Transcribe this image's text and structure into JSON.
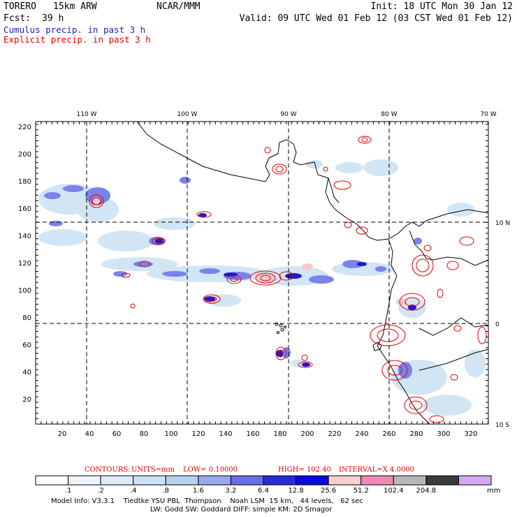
{
  "header": {
    "model": "TORERO",
    "resolution": "15km ARW",
    "org": "NCAR/MMM",
    "init": "Init: 18 UTC Mon 30 Jan 12",
    "fcst_label": "Fcst:",
    "fcst_value": "39 h",
    "valid": "Valid: 09 UTC Wed 01 Feb 12 (03 CST Wed 01 Feb 12)",
    "cumulus": "Cumulus precip. in past 3 h",
    "explicit": "Explicit precip. in past 3 h"
  },
  "colors": {
    "cumulus_title": "#2020c0",
    "explicit_title": "#e00000",
    "contour": "#e00000"
  },
  "axes": {
    "lon_labels": [
      "110 W",
      "100 W",
      "90 W",
      "80 W",
      "70 W"
    ],
    "lat_labels": [
      "10 N",
      "0",
      "10 S"
    ],
    "y_ticks": [
      "220",
      "200",
      "180",
      "160",
      "140",
      "120",
      "100",
      "80",
      "60",
      "40",
      "20"
    ],
    "x_ticks": [
      "20",
      "40",
      "60",
      "80",
      "100",
      "120",
      "140",
      "160",
      "180",
      "200",
      "220",
      "240",
      "260",
      "280",
      "300",
      "320"
    ]
  },
  "contours": {
    "prefix": "CONTOURS:",
    "units": "UNITS=mm",
    "low": "LOW= 0.10000",
    "high": "HIGH= 102.40",
    "interval": "INTERVAL=X 4.0000"
  },
  "colorbar": {
    "labels": [
      ".1",
      ".2",
      ".4",
      ".8",
      "1.6",
      "3.2",
      "6.4",
      "12.8",
      "25.6",
      "51.2",
      "102.4",
      "204.8"
    ],
    "unit": "mm",
    "colors": [
      "#ffffff",
      "#eef4fb",
      "#ddebf7",
      "#cde3f5",
      "#b6d1f0",
      "#9aa6ee",
      "#6a6ee8",
      "#2a2ad8",
      "#0a0ae0",
      "#f4d0d0",
      "#ef8ab8",
      "#b8b8b8",
      "#3a3a3a",
      "#d4a8f0"
    ]
  },
  "footer": {
    "line1": "Model Info: V3.3.1    Tiedtke YSU PBL  Thompson    Noah LSM  15 km,   44 levels,   62 sec",
    "line2": "LW: Godd SW: Goddard DIFF: simple KM: 2D Smagor"
  }
}
